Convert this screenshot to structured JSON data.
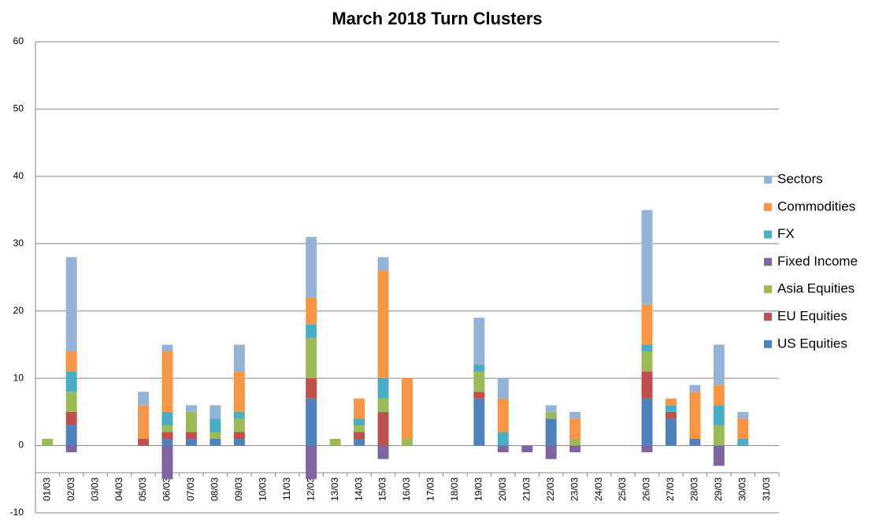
{
  "chart_data": {
    "type": "stacked_bar",
    "title": "March 2018 Turn Clusters",
    "categories": [
      "01/03",
      "02/03",
      "03/03",
      "04/03",
      "05/03",
      "06/03",
      "07/03",
      "08/03",
      "09/03",
      "10/03",
      "11/03",
      "12/03",
      "13/03",
      "14/03",
      "15/03",
      "16/03",
      "17/03",
      "18/03",
      "19/03",
      "20/03",
      "21/03",
      "22/03",
      "23/03",
      "24/03",
      "25/03",
      "26/03",
      "27/03",
      "28/03",
      "29/03",
      "30/03",
      "31/03"
    ],
    "series": [
      {
        "name": "US Equities",
        "color": "#4f81bd",
        "values": [
          0,
          3,
          0,
          0,
          0,
          1,
          1,
          1,
          1,
          0,
          0,
          7,
          0,
          1,
          0,
          0,
          0,
          0,
          7,
          0,
          0,
          4,
          0,
          0,
          0,
          7,
          4,
          1,
          0,
          0,
          0
        ]
      },
      {
        "name": "EU Equities",
        "color": "#c0504d",
        "values": [
          0,
          2,
          0,
          0,
          1,
          1,
          1,
          0,
          1,
          0,
          0,
          3,
          0,
          1,
          5,
          0,
          0,
          0,
          1,
          0,
          0,
          0,
          0,
          0,
          0,
          4,
          1,
          0,
          0,
          0,
          0
        ]
      },
      {
        "name": "Asia Equities",
        "color": "#9bbb59",
        "values": [
          1,
          3,
          0,
          0,
          0,
          1,
          3,
          1,
          2,
          0,
          0,
          6,
          1,
          1,
          2,
          1,
          0,
          0,
          3,
          0,
          0,
          1,
          1,
          0,
          0,
          3,
          0,
          0,
          3,
          0,
          0
        ]
      },
      {
        "name": "Fixed Income",
        "color": "#8064a2",
        "values": [
          0,
          -1,
          0,
          0,
          0,
          -5,
          0,
          0,
          0,
          0,
          0,
          -5,
          0,
          0,
          -2,
          0,
          0,
          0,
          0,
          -1,
          -1,
          -2,
          -1,
          0,
          0,
          -1,
          0,
          0,
          -3,
          0,
          0
        ]
      },
      {
        "name": "FX",
        "color": "#4bacc6",
        "values": [
          0,
          3,
          0,
          0,
          0,
          2,
          0,
          2,
          1,
          0,
          0,
          2,
          0,
          1,
          3,
          0,
          0,
          0,
          1,
          2,
          0,
          0,
          0,
          0,
          0,
          1,
          1,
          0,
          3,
          1,
          0
        ]
      },
      {
        "name": "Commodities",
        "color": "#f79646",
        "values": [
          0,
          3,
          0,
          0,
          5,
          9,
          0,
          0,
          6,
          0,
          0,
          4,
          0,
          3,
          16,
          9,
          0,
          0,
          0,
          5,
          0,
          0,
          3,
          0,
          0,
          6,
          1,
          7,
          3,
          3,
          0
        ]
      },
      {
        "name": "Sectors",
        "color": "#95b3d7",
        "values": [
          0,
          14,
          0,
          0,
          2,
          1,
          1,
          2,
          4,
          0,
          0,
          9,
          0,
          0,
          2,
          0,
          0,
          0,
          7,
          3,
          0,
          1,
          1,
          0,
          0,
          14,
          0,
          1,
          6,
          1,
          0
        ]
      }
    ],
    "ylim": [
      -10,
      60
    ],
    "yticks": [
      -10,
      0,
      10,
      20,
      30,
      40,
      50,
      60
    ],
    "grid": true,
    "legend": "right"
  }
}
